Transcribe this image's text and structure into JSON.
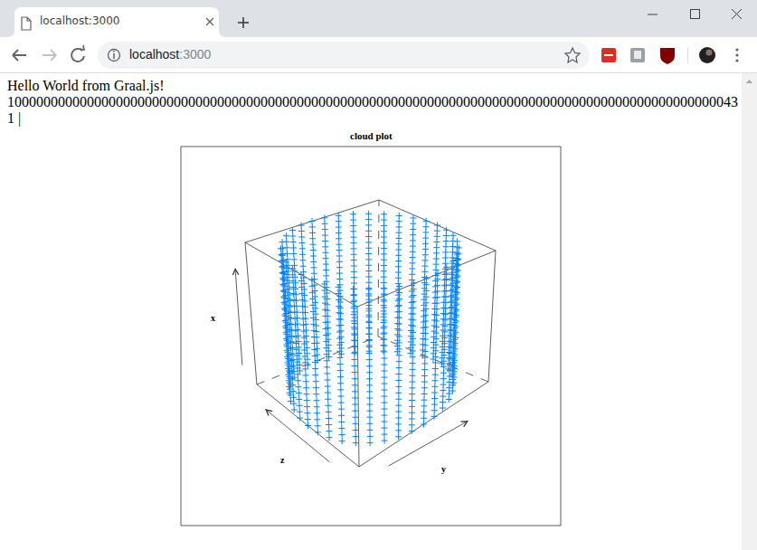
{
  "browser": {
    "tab_title": "localhost:3000",
    "url_host": "localhost",
    "url_port": ":3000"
  },
  "page": {
    "lines": [
      "Hello World from Graal.js!",
      "10000000000000000000000000000000000000000000000000000000000000000000000000000000000000000000000000043",
      "1 |"
    ]
  },
  "chart_data": {
    "type": "scatter3d",
    "title": "cloud plot",
    "x_label": "x",
    "y_label": "y",
    "z_label": "z",
    "x": [
      1,
      2,
      3,
      4,
      5,
      6,
      7,
      8,
      9,
      10,
      11,
      12,
      13,
      14,
      15,
      16,
      17,
      18,
      19,
      20,
      21,
      22,
      23,
      24,
      25
    ],
    "ring_y": [
      1,
      0.985,
      0.94,
      0.866,
      0.766,
      0.643,
      0.5,
      0.342,
      0.174,
      0,
      -0.174,
      -0.342,
      -0.5,
      -0.643,
      -0.766,
      -0.866,
      -0.94,
      -0.985,
      -1,
      -0.985,
      -0.94,
      -0.866,
      -0.766,
      -0.643,
      -0.5,
      -0.342,
      -0.174,
      0,
      0.174,
      0.342,
      0.5,
      0.643,
      0.766,
      0.866,
      0.94,
      0.985
    ],
    "ring_z": [
      0,
      0.174,
      0.342,
      0.5,
      0.643,
      0.766,
      0.866,
      0.94,
      0.985,
      1,
      0.985,
      0.94,
      0.866,
      0.766,
      0.643,
      0.5,
      0.342,
      0.174,
      0,
      -0.174,
      -0.342,
      -0.5,
      -0.643,
      -0.766,
      -0.866,
      -0.94,
      -0.985,
      -1,
      -0.985,
      -0.94,
      -0.866,
      -0.766,
      -0.643,
      -0.5,
      -0.342,
      -0.174
    ],
    "xlim": [
      1,
      25
    ],
    "ylim": [
      -1,
      1
    ],
    "zlim": [
      -1,
      1
    ],
    "tick_labels": false,
    "color": "#0080ff",
    "marker": "cross"
  }
}
